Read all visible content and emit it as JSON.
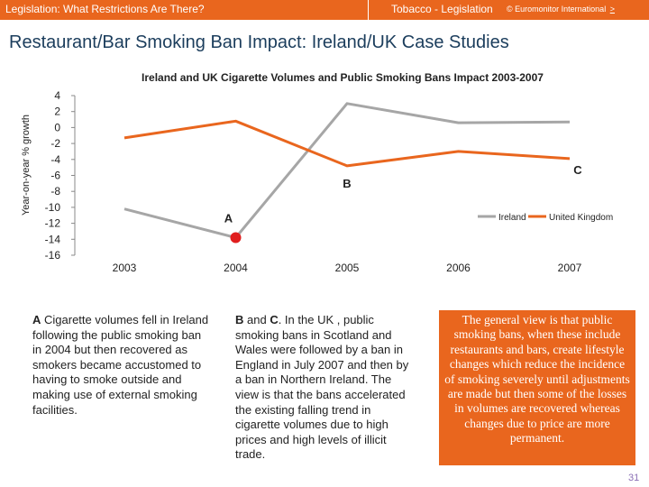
{
  "header": {
    "left_title": "Legislation: What Restrictions Are There?",
    "section": "Tobacco - Legislation",
    "copyright": "© Euromonitor International",
    "nav_arrow": ">"
  },
  "page_title": "Restaurant/Bar Smoking Ban Impact: Ireland/UK Case Studies",
  "chart_data": {
    "type": "line",
    "title": "Ireland and UK Cigarette Volumes and Public Smoking Bans Impact 2003-2007",
    "ylabel": "Year-on-year % growth",
    "xlabel": "",
    "categories": [
      "2003",
      "2004",
      "2005",
      "2006",
      "2007"
    ],
    "y_ticks": [
      "4",
      "2",
      "0",
      "-2",
      "-4",
      "-6",
      "-8",
      "-10",
      "-12",
      "-14",
      "-16"
    ],
    "ylim": [
      -16,
      4
    ],
    "grid": false,
    "legend_position": "right",
    "series": [
      {
        "name": "Ireland",
        "color": "#a6a6a6",
        "values": [
          -10.2,
          -13.8,
          3.0,
          0.6,
          0.7
        ]
      },
      {
        "name": "United Kingdom",
        "color": "#e9661e",
        "values": [
          -1.3,
          0.8,
          -4.8,
          -3.0,
          -3.9
        ]
      }
    ],
    "annotations": [
      {
        "label": "A",
        "category": "2004",
        "series": "Ireland",
        "value": -13.8,
        "marker": "red-dot",
        "marker_color": "#e01e1e"
      },
      {
        "label": "B",
        "category": "2005",
        "series": "United Kingdom"
      },
      {
        "label": "C",
        "category": "2007",
        "series": "United Kingdom"
      }
    ]
  },
  "notes": {
    "a_label": "A",
    "a_text": " Cigarette volumes fell in Ireland following the public smoking ban in 2004 but then recovered as smokers became accustomed to having to smoke outside and making use of external smoking facilities.",
    "bc_label": "B",
    "bc_and": " and ",
    "bc_label2": "C",
    "bc_text": ". In the UK , public smoking bans in Scotland and Wales were followed by a ban in England in July 2007 and then by a ban in Northern Ireland. The view is that the bans accelerated the existing falling trend in cigarette volumes due to high prices and high levels of illicit trade.",
    "summary": "The general view is that public smoking bans, when these include restaurants and bars, create lifestyle changes which reduce the incidence of smoking severely until adjustments are made but then some of the losses in volumes are recovered whereas changes due to price are more permanent."
  },
  "page_number": "31"
}
